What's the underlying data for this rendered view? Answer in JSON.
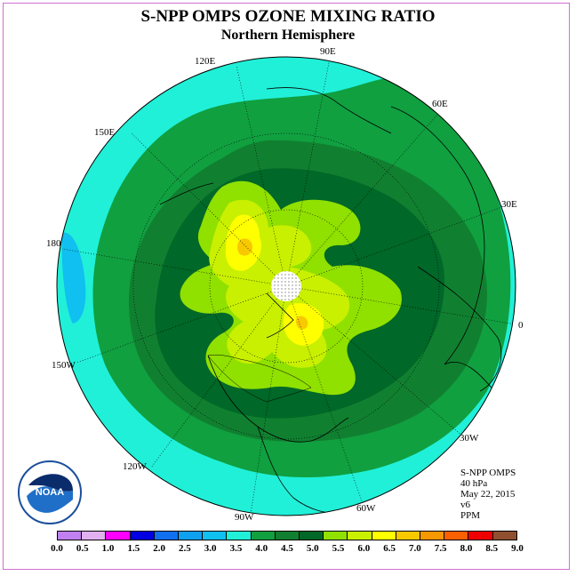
{
  "header": {
    "title": "S-NPP OMPS OZONE MIXING RATIO",
    "subtitle": "Northern Hemisphere"
  },
  "longitude_labels": {
    "e120": "120E",
    "e90": "90E",
    "e60": "60E",
    "e30": "30E",
    "e0": "0",
    "e180": "180",
    "e150": "150E",
    "w150": "150W",
    "w120": "120W",
    "w90": "90W",
    "w60": "60W",
    "w30": "30W"
  },
  "info": {
    "instrument": "S-NPP OMPS",
    "level": "40 hPa",
    "date": "May 22, 2015",
    "version": "v6",
    "units": "PPM"
  },
  "logo": {
    "text": "NOAA",
    "ring_text": "NATIONAL OCEANIC AND ATMOSPHERIC ADMINISTRATION · U.S. DEPARTMENT OF COMMERCE"
  },
  "colorbar": {
    "colors": [
      "#c080f0",
      "#e0b0f0",
      "#ff00ff",
      "#0000e0",
      "#1070f0",
      "#10a0f0",
      "#10c0f0",
      "#20f0d8",
      "#10a040",
      "#108030",
      "#006828",
      "#90e000",
      "#c8f000",
      "#ffff00",
      "#f8c800",
      "#f89800",
      "#f86000",
      "#f00000",
      "#905030"
    ],
    "ticks": [
      "0.0",
      "0.5",
      "1.0",
      "1.5",
      "2.0",
      "2.5",
      "3.0",
      "3.5",
      "4.0",
      "4.5",
      "5.0",
      "5.5",
      "6.0",
      "6.5",
      "7.0",
      "7.5",
      "8.0",
      "8.5",
      "9.0"
    ]
  },
  "map_colors": {
    "cyan": "#20f0d8",
    "light_blue": "#10c0f0",
    "green_4_0": "#10a040",
    "green_4_5": "#108030",
    "green_5_0": "#006828",
    "lime_5_5": "#90e000",
    "yellow_green_6_0": "#c8f000",
    "yellow_6_5": "#ffff00",
    "orange_7_0": "#f8c800",
    "pole_hole": "#ffffff"
  }
}
